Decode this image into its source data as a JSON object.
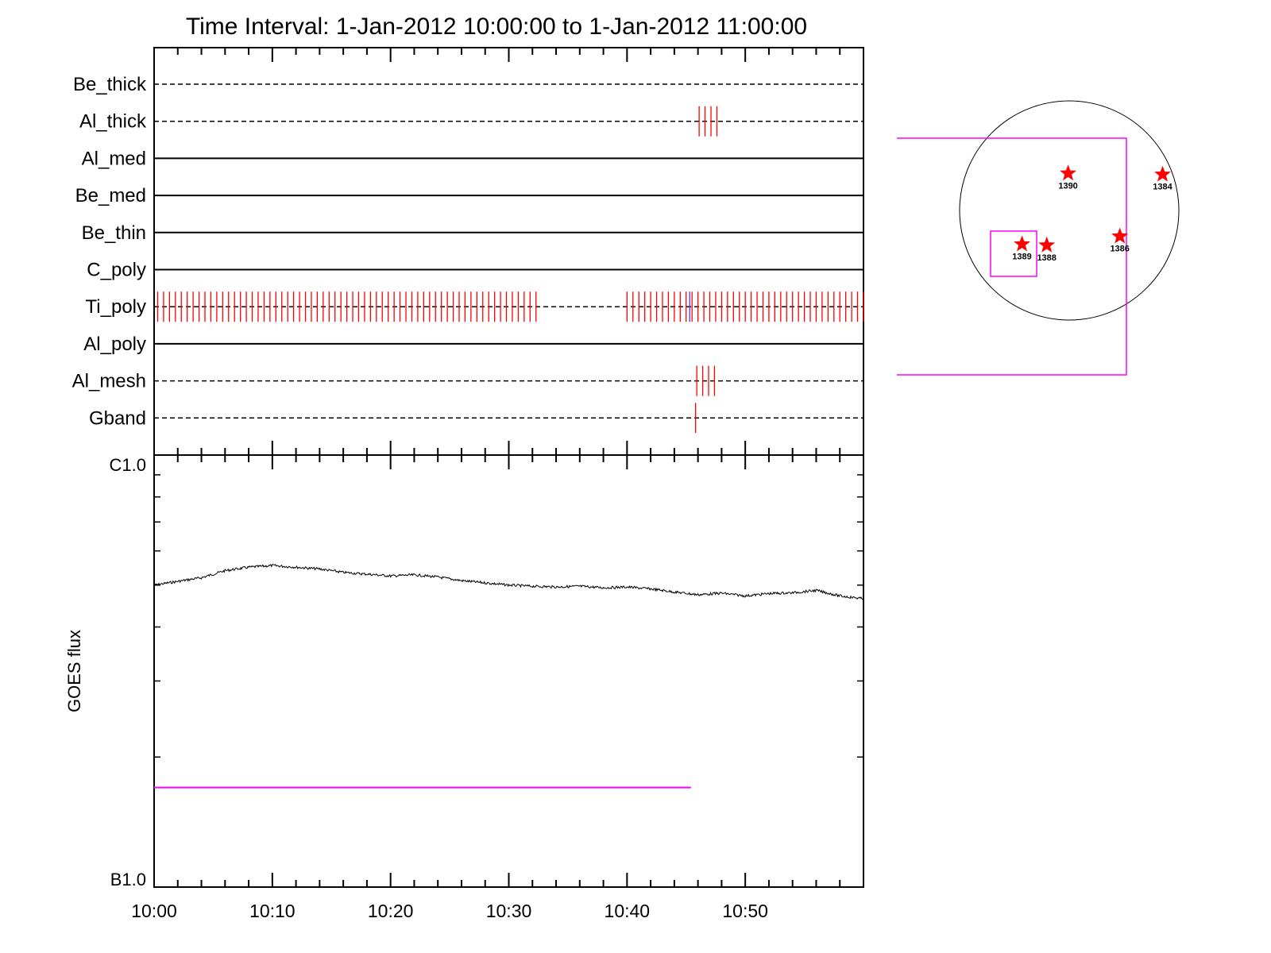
{
  "title": "Time Interval:  1-Jan-2012 10:00:00 to  1-Jan-2012 11:00:00",
  "colors": {
    "interval_tick": "#ff0000",
    "blue_tick": "#3b3bff",
    "magenta": "#ff00ff",
    "axes": "#000000",
    "curve": "#000000",
    "star": "#ff0000"
  },
  "chart_data": [
    {
      "type": "table",
      "description_free": true,
      "x_range_minutes": [
        0,
        60
      ],
      "rows": [
        {
          "label": "Be_thick",
          "style": "dashed",
          "ticks": []
        },
        {
          "label": "Al_thick",
          "style": "dashed",
          "ticks": [
            46.1,
            46.6,
            47.1,
            47.6
          ]
        },
        {
          "label": "Al_med",
          "style": "solid",
          "ticks": []
        },
        {
          "label": "Be_med",
          "style": "solid",
          "ticks": []
        },
        {
          "label": "Be_thin",
          "style": "solid",
          "ticks": []
        },
        {
          "label": "C_poly",
          "style": "solid",
          "ticks": []
        },
        {
          "label": "Ti_poly",
          "style": "dashed",
          "ticks_ranges": [
            [
              0.3,
              32.3
            ],
            [
              40.0,
              60.0
            ]
          ],
          "tick_spacing": 0.5,
          "blue_tick": 45.3
        },
        {
          "label": "Al_poly",
          "style": "solid",
          "ticks": []
        },
        {
          "label": "Al_mesh",
          "style": "dashed",
          "ticks": [
            45.9,
            46.4,
            46.9,
            47.4
          ]
        },
        {
          "label": "Gband",
          "style": "dashed",
          "ticks": [
            45.8
          ]
        }
      ]
    },
    {
      "type": "line",
      "ylabel": "GOES flux",
      "y_top_label": "C1.0",
      "y_bottom_label": "B1.0",
      "ylim": [
        1e-06,
        1e-05
      ],
      "scale": "log",
      "xlim_minutes": [
        0,
        60
      ],
      "x_tick_labels": [
        "10:00",
        "10:10",
        "10:20",
        "10:30",
        "10:40",
        "10:50"
      ],
      "x_tick_minutes": [
        0,
        10,
        20,
        30,
        40,
        50
      ],
      "series": [
        {
          "x_minutes": [
            0,
            2,
            4,
            6,
            8,
            10,
            12,
            14,
            16,
            18,
            20,
            22,
            24,
            26,
            28,
            30,
            32,
            34,
            36,
            38,
            40,
            42,
            44,
            46,
            48,
            50,
            52,
            54,
            56,
            58,
            60
          ],
          "y": [
            5e-06,
            5.1e-06,
            5.2e-06,
            5.4e-06,
            5.5e-06,
            5.55e-06,
            5.5e-06,
            5.45e-06,
            5.35e-06,
            5.3e-06,
            5.25e-06,
            5.28e-06,
            5.22e-06,
            5.12e-06,
            5.06e-06,
            5e-06,
            4.97e-06,
            4.95e-06,
            4.97e-06,
            4.93e-06,
            4.95e-06,
            4.9e-06,
            4.82e-06,
            4.75e-06,
            4.79e-06,
            4.72e-06,
            4.78e-06,
            4.8e-06,
            4.86e-06,
            4.72e-06,
            4.65e-06
          ]
        }
      ],
      "magenta_bar": {
        "x_start_minutes": 0,
        "x_end_minutes": 45.4,
        "y": 1.7e-06
      }
    },
    {
      "type": "scatter",
      "active_regions": [
        {
          "label": "1390",
          "x": -10,
          "y": 330
        },
        {
          "label": "1384",
          "x": 830,
          "y": 320
        },
        {
          "label": "1389",
          "x": -420,
          "y": -300
        },
        {
          "label": "1388",
          "x": -200,
          "y": -310
        },
        {
          "label": "1386",
          "x": 450,
          "y": -230
        }
      ],
      "disk_radius": 975
    }
  ]
}
